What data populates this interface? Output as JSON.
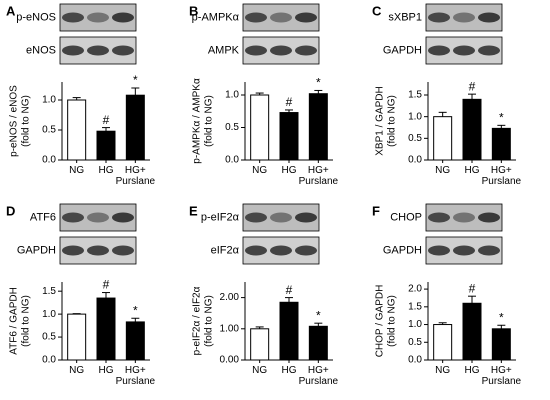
{
  "chart_data": [
    {
      "type": "bar",
      "panel": "A",
      "blots": [
        "p-eNOS",
        "eNOS"
      ],
      "ylabel": [
        "p-eNOS / eNOS",
        "(fold to NG)"
      ],
      "categories": [
        "NG",
        "HG",
        "HG+ Purslane"
      ],
      "values": [
        1.0,
        0.48,
        1.08
      ],
      "errors": [
        0.04,
        0.06,
        0.12
      ],
      "annotations": [
        null,
        "#",
        "*"
      ],
      "colors": [
        "#ffffff",
        "#000000",
        "#000000"
      ],
      "ylim": [
        0,
        1.3
      ],
      "yticks": [
        {
          "value": 0,
          "label": "0.0"
        },
        {
          "value": 0.5,
          "label": "0.5"
        },
        {
          "value": 1,
          "label": "1.0"
        }
      ]
    },
    {
      "type": "bar",
      "panel": "B",
      "blots": [
        "p-AMPKα",
        "AMPK"
      ],
      "ylabel": [
        "p-AMPKα / AMPKα",
        "(fold to NG)"
      ],
      "categories": [
        "NG",
        "HG",
        "HG+ Purslane"
      ],
      "values": [
        1.0,
        0.73,
        1.02
      ],
      "errors": [
        0.03,
        0.04,
        0.05
      ],
      "annotations": [
        null,
        "#",
        "*"
      ],
      "colors": [
        "#ffffff",
        "#000000",
        "#000000"
      ],
      "ylim": [
        0,
        1.2
      ],
      "yticks": [
        {
          "value": 0,
          "label": "0.0"
        },
        {
          "value": 0.5,
          "label": "0.5"
        },
        {
          "value": 1,
          "label": "1.0"
        }
      ]
    },
    {
      "type": "bar",
      "panel": "C",
      "blots": [
        "sXBP1",
        "GAPDH"
      ],
      "ylabel": [
        "XBP1 / GAPDH",
        "(fold to NG)"
      ],
      "categories": [
        "NG",
        "HG",
        "HG+ Purslane"
      ],
      "values": [
        1.0,
        1.4,
        0.73
      ],
      "errors": [
        0.1,
        0.12,
        0.07
      ],
      "annotations": [
        null,
        "#",
        "*"
      ],
      "colors": [
        "#ffffff",
        "#000000",
        "#000000"
      ],
      "ylim": [
        0,
        1.8
      ],
      "yticks": [
        {
          "value": 0,
          "label": "0.0"
        },
        {
          "value": 0.5,
          "label": "0.5"
        },
        {
          "value": 1,
          "label": "1.0"
        },
        {
          "value": 1.5,
          "label": "1.5"
        }
      ]
    },
    {
      "type": "bar",
      "panel": "D",
      "blots": [
        "ATF6",
        "GAPDH"
      ],
      "ylabel": [
        "ATF6 / GAPDH",
        "(fold to NG)"
      ],
      "categories": [
        "NG",
        "HG",
        "HG+ Purslane"
      ],
      "values": [
        1.0,
        1.35,
        0.83
      ],
      "errors": [
        0.01,
        0.12,
        0.08
      ],
      "annotations": [
        null,
        "#",
        "*"
      ],
      "colors": [
        "#ffffff",
        "#000000",
        "#000000"
      ],
      "ylim": [
        0,
        1.7
      ],
      "yticks": [
        {
          "value": 0,
          "label": "0.0"
        },
        {
          "value": 0.5,
          "label": "0.5"
        },
        {
          "value": 1,
          "label": "1.0"
        },
        {
          "value": 1.5,
          "label": "1.5"
        }
      ]
    },
    {
      "type": "bar",
      "panel": "E",
      "blots": [
        "p-eIF2α",
        "eIF2α"
      ],
      "ylabel": [
        "p-eIF2α / eIF2α",
        "(fold to NG)"
      ],
      "categories": [
        "NG",
        "HG",
        "HG+ Purslane"
      ],
      "values": [
        1.0,
        1.85,
        1.08
      ],
      "errors": [
        0.06,
        0.15,
        0.1
      ],
      "annotations": [
        null,
        "#",
        "*"
      ],
      "colors": [
        "#ffffff",
        "#000000",
        "#000000"
      ],
      "ylim": [
        0,
        2.5
      ],
      "yticks": [
        {
          "value": 0,
          "label": "0.00"
        },
        {
          "value": 1,
          "label": "1.00"
        },
        {
          "value": 2,
          "label": "2.00"
        }
      ]
    },
    {
      "type": "bar",
      "panel": "F",
      "blots": [
        "CHOP",
        "GAPDH"
      ],
      "ylabel": [
        "CHOP / GAPDH",
        "(fold to NG)"
      ],
      "categories": [
        "NG",
        "HG",
        "HG+ Purslane"
      ],
      "values": [
        1.0,
        1.6,
        0.88
      ],
      "errors": [
        0.05,
        0.2,
        0.1
      ],
      "annotations": [
        null,
        "#",
        "*"
      ],
      "colors": [
        "#ffffff",
        "#000000",
        "#000000"
      ],
      "ylim": [
        0,
        2.2
      ],
      "yticks": [
        {
          "value": 0,
          "label": "0.0"
        },
        {
          "value": 0.5,
          "label": "0.5"
        },
        {
          "value": 1,
          "label": "1.0"
        },
        {
          "value": 1.5,
          "label": "1.5"
        },
        {
          "value": 2,
          "label": "2.0"
        }
      ]
    }
  ]
}
